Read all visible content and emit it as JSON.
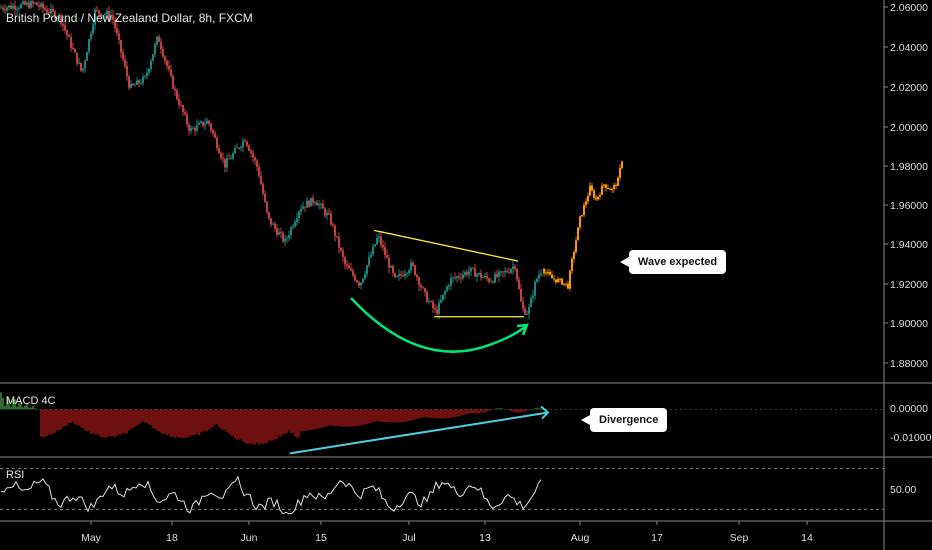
{
  "chart_data": {
    "type": "candlestick",
    "title": "British Pound / New Zealand Dollar, 8h, FXCM",
    "instrument": "British Pound / New Zealand Dollar",
    "timeframe": "8h",
    "source": "FXCM",
    "price_axis": {
      "ticks": [
        "2.06000",
        "2.04000",
        "2.02000",
        "2.00000",
        "1.98000",
        "1.96000",
        "1.94000",
        "1.92000",
        "1.90000",
        "1.88000"
      ],
      "range": [
        1.867,
        2.066
      ]
    },
    "time_axis": {
      "ticks": [
        "May",
        "18",
        "Jun",
        "15",
        "Jul",
        "13",
        "Aug",
        "17",
        "Sep",
        "14"
      ]
    },
    "price_path": [
      {
        "x": 0,
        "y": 2.062
      },
      {
        "x": 35,
        "y": 2.064
      },
      {
        "x": 60,
        "y": 2.057
      },
      {
        "x": 82,
        "y": 2.028
      },
      {
        "x": 95,
        "y": 2.06
      },
      {
        "x": 112,
        "y": 2.058
      },
      {
        "x": 130,
        "y": 2.02
      },
      {
        "x": 145,
        "y": 2.025
      },
      {
        "x": 158,
        "y": 2.047
      },
      {
        "x": 175,
        "y": 2.018
      },
      {
        "x": 190,
        "y": 1.998
      },
      {
        "x": 208,
        "y": 2.003
      },
      {
        "x": 225,
        "y": 1.98
      },
      {
        "x": 245,
        "y": 1.994
      },
      {
        "x": 258,
        "y": 1.978
      },
      {
        "x": 268,
        "y": 1.952
      },
      {
        "x": 285,
        "y": 1.94
      },
      {
        "x": 300,
        "y": 1.958
      },
      {
        "x": 315,
        "y": 1.962
      },
      {
        "x": 330,
        "y": 1.952
      },
      {
        "x": 345,
        "y": 1.928
      },
      {
        "x": 360,
        "y": 1.918
      },
      {
        "x": 378,
        "y": 1.943
      },
      {
        "x": 395,
        "y": 1.92
      },
      {
        "x": 412,
        "y": 1.928
      },
      {
        "x": 425,
        "y": 1.912
      },
      {
        "x": 436,
        "y": 1.903
      },
      {
        "x": 450,
        "y": 1.92
      },
      {
        "x": 470,
        "y": 1.925
      },
      {
        "x": 490,
        "y": 1.92
      },
      {
        "x": 505,
        "y": 1.924
      },
      {
        "x": 515,
        "y": 1.928
      },
      {
        "x": 522,
        "y": 1.905
      },
      {
        "x": 528,
        "y": 1.903
      },
      {
        "x": 536,
        "y": 1.92
      },
      {
        "x": 542,
        "y": 1.926
      }
    ],
    "projection": [
      {
        "x": 542,
        "y": 1.926
      },
      {
        "x": 552,
        "y": 1.921
      },
      {
        "x": 562,
        "y": 1.919
      },
      {
        "x": 568,
        "y": 1.917
      },
      {
        "x": 572,
        "y": 1.93
      },
      {
        "x": 580,
        "y": 1.952
      },
      {
        "x": 590,
        "y": 1.968
      },
      {
        "x": 596,
        "y": 1.962
      },
      {
        "x": 604,
        "y": 1.97
      },
      {
        "x": 612,
        "y": 1.967
      },
      {
        "x": 618,
        "y": 1.972
      },
      {
        "x": 622,
        "y": 1.983
      }
    ],
    "annotations": {
      "wave_label": "Wave expected",
      "divergence_label": "Divergence",
      "upper_trendline": [
        {
          "x": 374,
          "y": 1.946
        },
        {
          "x": 518,
          "y": 1.93
        }
      ],
      "lower_trendline": [
        {
          "x": 434,
          "y": 1.901
        },
        {
          "x": 524,
          "y": 1.901
        }
      ]
    },
    "macd": {
      "name": "MACD 4C",
      "ticks": [
        "0.00000",
        "-0.01000"
      ],
      "range": [
        -0.0175,
        0.0095
      ],
      "divergence_line": [
        {
          "x": 290,
          "y": -0.0165
        },
        {
          "x": 548,
          "y": -0.0012
        }
      ]
    },
    "rsi": {
      "name": "RSI",
      "ticks": [
        "50.00"
      ],
      "range": [
        20,
        80
      ],
      "levels": [
        30,
        70
      ]
    },
    "colors": {
      "up": "#26a69a",
      "down": "#ef5350",
      "projection": "#ff9800",
      "trendline": "#ffeb3b",
      "curve": "#00e676",
      "divergence": "#4dd0e1",
      "macd_up": "#4caf50",
      "macd_down": "#b71c1c"
    }
  }
}
